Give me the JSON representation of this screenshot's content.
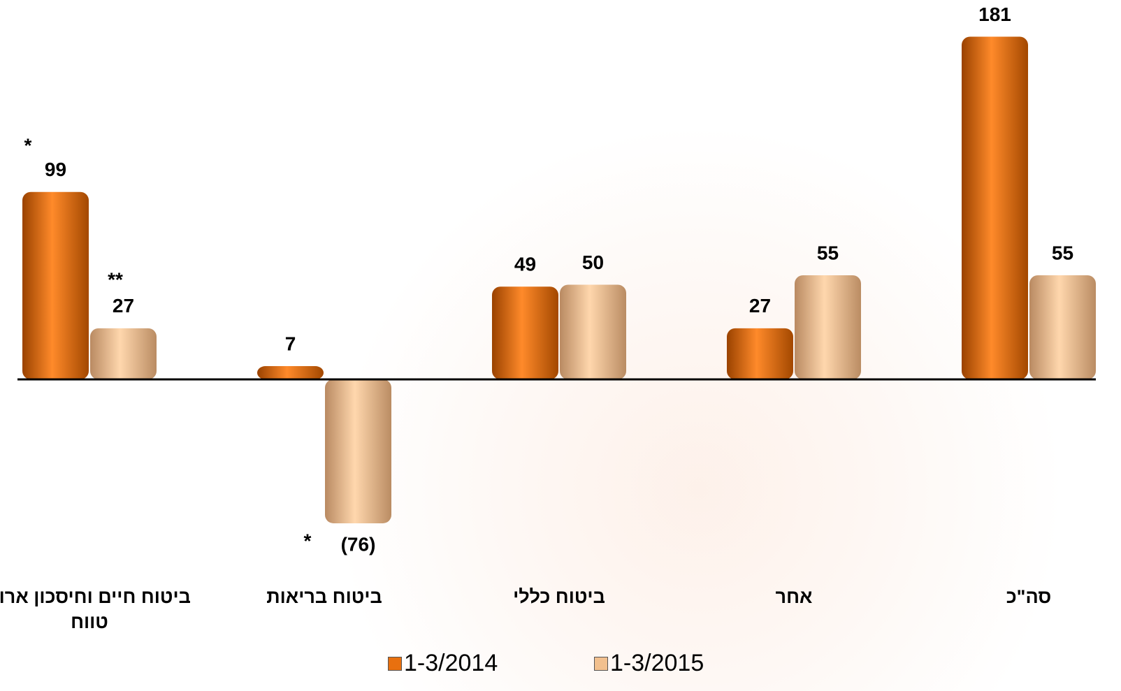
{
  "chart_data": {
    "type": "bar",
    "categories": [
      "ביטוח חיים וחיסכון ארוך טווח",
      "ביטוח בריאות",
      "ביטוח כללי",
      "אחר",
      "סה\"כ"
    ],
    "series": [
      {
        "name": "1-3/2014",
        "color": "#e8700f",
        "values": [
          99,
          7,
          49,
          27,
          181
        ]
      },
      {
        "name": "1-3/2015",
        "color": "#f2c08e",
        "values": [
          27,
          -76,
          50,
          55,
          55
        ],
        "value_labels": [
          "27",
          "(76)",
          "50",
          "55",
          "55"
        ]
      }
    ],
    "ylim": [
      -100,
      200
    ],
    "negative_label_color": "#ff0000",
    "annotations": [
      "*",
      "**",
      "*"
    ],
    "legend": "bottom"
  }
}
